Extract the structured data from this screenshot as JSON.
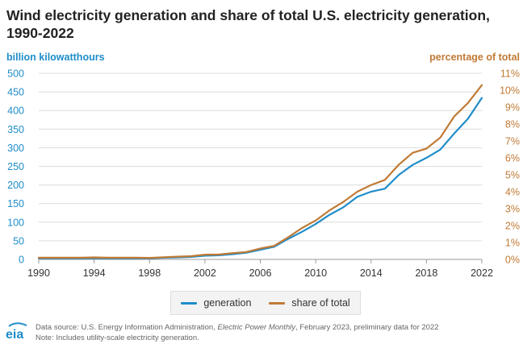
{
  "title": "Wind electricity generation and share of total U.S. electricity generation, 1990-2022",
  "left_axis_unit": "billion kilowatthours",
  "right_axis_unit": "percentage of total",
  "legend": {
    "generation": "generation",
    "share": "share of total"
  },
  "source": {
    "prefix": "Data source: U.S. Energy Information Administration, ",
    "publication": "Electric Power Monthly",
    "suffix": ", February 2023, preliminary data for 2022",
    "note": "Note: Includes utility-scale electricity generation."
  },
  "logo_text": "eia",
  "colors": {
    "generation": "#1f8dc9",
    "share": "#c07a35",
    "grid": "#dcdcdc",
    "axis_text_left": "#1f8dc9",
    "axis_text_right": "#c07a35"
  },
  "chart_data": {
    "type": "line",
    "title": "Wind electricity generation and share of total U.S. electricity generation, 1990-2022",
    "x": [
      1990,
      1991,
      1992,
      1993,
      1994,
      1995,
      1996,
      1997,
      1998,
      1999,
      2000,
      2001,
      2002,
      2003,
      2004,
      2005,
      2006,
      2007,
      2008,
      2009,
      2010,
      2011,
      2012,
      2013,
      2014,
      2015,
      2016,
      2017,
      2018,
      2019,
      2020,
      2021,
      2022
    ],
    "x_ticks": [
      1990,
      1994,
      1998,
      2002,
      2006,
      2010,
      2014,
      2018,
      2022
    ],
    "y_left": {
      "label": "billion kilowatthours",
      "lim": [
        0,
        500
      ],
      "ticks": [
        0,
        50,
        100,
        150,
        200,
        250,
        300,
        350,
        400,
        450,
        500
      ]
    },
    "y_right": {
      "label": "percentage of total",
      "lim": [
        0,
        11
      ],
      "ticks": [
        "0%",
        "1%",
        "2%",
        "3%",
        "4%",
        "5%",
        "6%",
        "7%",
        "8%",
        "9%",
        "10%",
        "11%"
      ]
    },
    "series": [
      {
        "name": "generation",
        "axis": "left",
        "values": [
          3,
          3,
          3,
          3,
          3.5,
          3,
          3,
          3,
          3,
          4.5,
          5.5,
          6.7,
          10,
          11,
          14,
          18,
          26,
          34,
          55,
          74,
          95,
          120,
          140,
          168,
          182,
          190,
          227,
          254,
          273,
          295,
          338,
          378,
          434
        ]
      },
      {
        "name": "share of total",
        "axis": "right",
        "values": [
          0.1,
          0.1,
          0.1,
          0.1,
          0.12,
          0.1,
          0.1,
          0.1,
          0.09,
          0.13,
          0.16,
          0.19,
          0.28,
          0.29,
          0.37,
          0.44,
          0.65,
          0.8,
          1.3,
          1.85,
          2.3,
          2.9,
          3.4,
          4.0,
          4.4,
          4.7,
          5.6,
          6.3,
          6.55,
          7.2,
          8.45,
          9.25,
          10.3
        ]
      }
    ],
    "grid": true,
    "legend_position": "bottom"
  }
}
